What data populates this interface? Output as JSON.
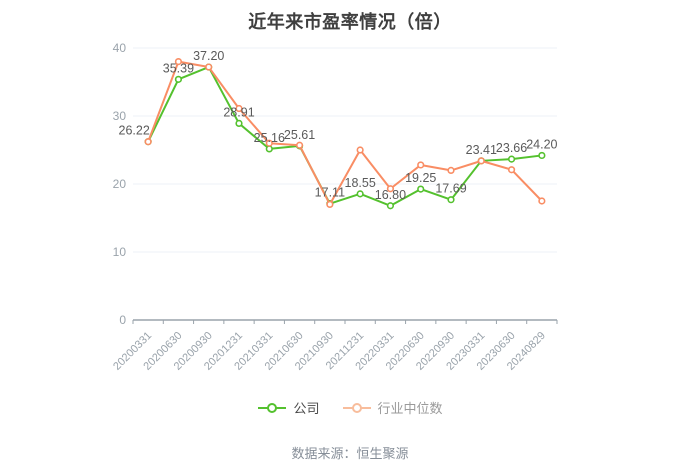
{
  "page": {
    "title": "近年来市盈率情况（倍）",
    "source_note": "数据来源：恒生聚源"
  },
  "legend": {
    "items": [
      {
        "label": "公司",
        "marker_color": "#54c12e",
        "label_color": "#4a4a4a"
      },
      {
        "label": "行业中位数",
        "marker_color": "#f8bd9c",
        "label_color": "#9a9a9a"
      }
    ]
  },
  "chart_data": {
    "type": "line",
    "title": "近年来市盈率情况（倍）",
    "categories": [
      "20200331",
      "20200630",
      "20200930",
      "20201231",
      "20210331",
      "20210630",
      "20210930",
      "20211231",
      "20220331",
      "20220630",
      "20220930",
      "20230331",
      "20230630",
      "20240829"
    ],
    "series": [
      {
        "name": "公司",
        "color": "#54c12e",
        "show_value_labels": true,
        "values": [
          26.22,
          35.39,
          37.2,
          28.91,
          25.16,
          25.61,
          17.11,
          18.55,
          16.8,
          19.25,
          17.69,
          23.41,
          23.66,
          24.2
        ]
      },
      {
        "name": "行业中位数",
        "color": "#f98d64",
        "show_value_labels": false,
        "values": [
          26.22,
          38.0,
          37.2,
          31.1,
          26.0,
          25.7,
          17.0,
          25.0,
          19.3,
          22.8,
          22.0,
          23.4,
          22.1,
          17.5
        ]
      }
    ],
    "ylim": [
      0,
      40
    ],
    "yticks": [
      0,
      10,
      20,
      30,
      40
    ],
    "grid": true,
    "legend_position": "bottom",
    "styles": {
      "grid_color": "#edf1f7",
      "axis_color": "#9aa3ab",
      "tick_label_color": "#9aa3ab",
      "value_label_color": "#5a5a5a"
    }
  }
}
